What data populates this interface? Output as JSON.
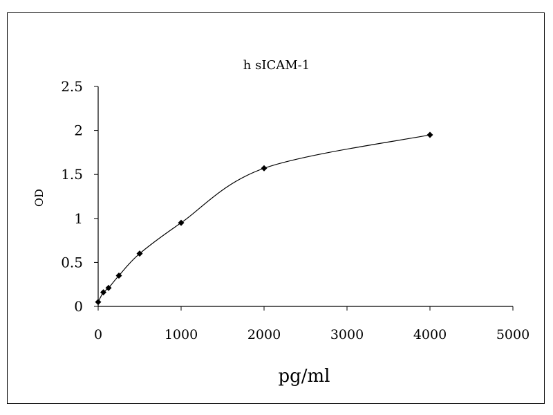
{
  "chart_data": {
    "type": "line",
    "title": "h sICAM-1",
    "xlabel": "pg/ml",
    "ylabel": "OD",
    "xlim": [
      0,
      5000
    ],
    "ylim": [
      0,
      2.5
    ],
    "xticks": [
      "0",
      "1000",
      "2000",
      "3000",
      "4000",
      "5000"
    ],
    "yticks": [
      "0",
      "0.5",
      "1",
      "1.5",
      "2",
      "2.5"
    ],
    "grid": false,
    "legend": "none",
    "marker": "diamond",
    "line_style": "smooth",
    "color": "#000000",
    "series": [
      {
        "x": [
          0,
          62.5,
          125,
          250,
          500,
          1000,
          2000,
          4000
        ],
        "y": [
          0.05,
          0.16,
          0.21,
          0.35,
          0.6,
          0.95,
          1.57,
          1.95
        ]
      }
    ]
  }
}
